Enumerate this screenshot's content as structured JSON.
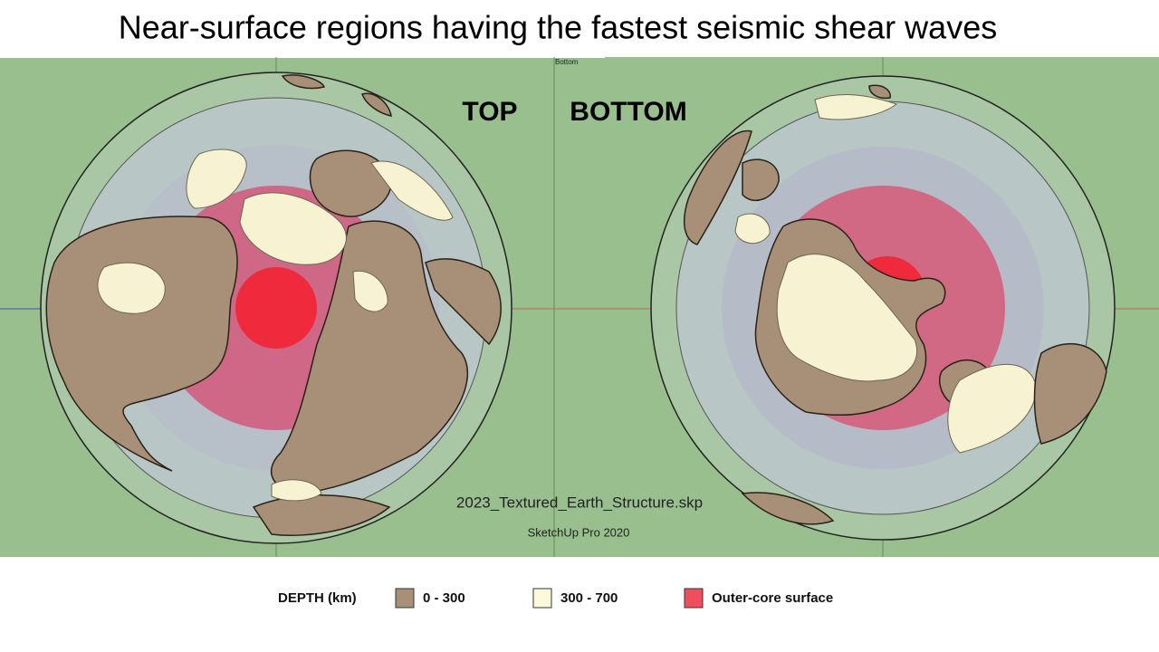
{
  "header": {
    "title": "Near-surface regions having the fastest seismic shear waves"
  },
  "viewport": {
    "corner_label": "Bottom",
    "top_label": "TOP",
    "bottom_label": "BOTTOM",
    "file_name": "2023_Textured_Earth_Structure.skp",
    "software": "SketchUp Pro 2020"
  },
  "legend": {
    "title": "DEPTH  (km)",
    "items": [
      {
        "label": "0 - 300",
        "color": "#a89078"
      },
      {
        "label": "300 - 700",
        "color": "#fbf8dc"
      },
      {
        "label": "Outer-core surface",
        "color": "#ef4f5c"
      }
    ]
  }
}
